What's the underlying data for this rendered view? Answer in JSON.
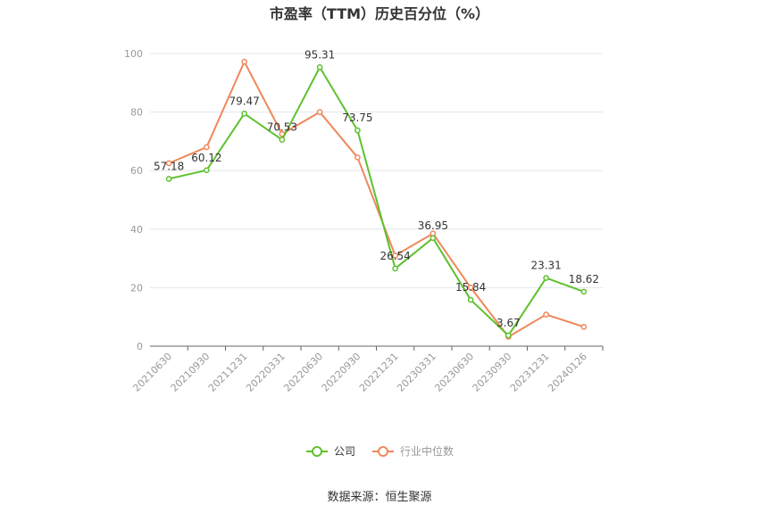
{
  "chart_data": {
    "type": "line",
    "title": "市盈率（TTM）历史百分位（%）",
    "categories": [
      "20210630",
      "20210930",
      "20211231",
      "20220331",
      "20220630",
      "20220930",
      "20221231",
      "20230331",
      "20230630",
      "20230930",
      "20231231",
      "20240126"
    ],
    "ylim": [
      0,
      100
    ],
    "yticks": [
      0,
      20,
      40,
      60,
      80,
      100
    ],
    "grid": true,
    "legend_position": "bottom",
    "series": [
      {
        "name": "公司",
        "color": "#5ec12f",
        "values": [
          57.18,
          60.12,
          79.47,
          70.53,
          95.31,
          73.75,
          26.54,
          36.95,
          15.84,
          3.67,
          23.31,
          18.62
        ],
        "labels": [
          "57.18",
          "60.12",
          "79.47",
          "70.53",
          "95.31",
          "73.75",
          "26.54",
          "36.95",
          "15.84",
          "3.67",
          "23.31",
          "18.62"
        ]
      },
      {
        "name": "行业中位数",
        "color": "#f0875a",
        "values": [
          62.5,
          68.0,
          97.2,
          72.5,
          80.0,
          64.5,
          31.0,
          38.5,
          20.0,
          3.2,
          10.8,
          6.6
        ]
      }
    ]
  },
  "source": "数据来源：恒生聚源"
}
